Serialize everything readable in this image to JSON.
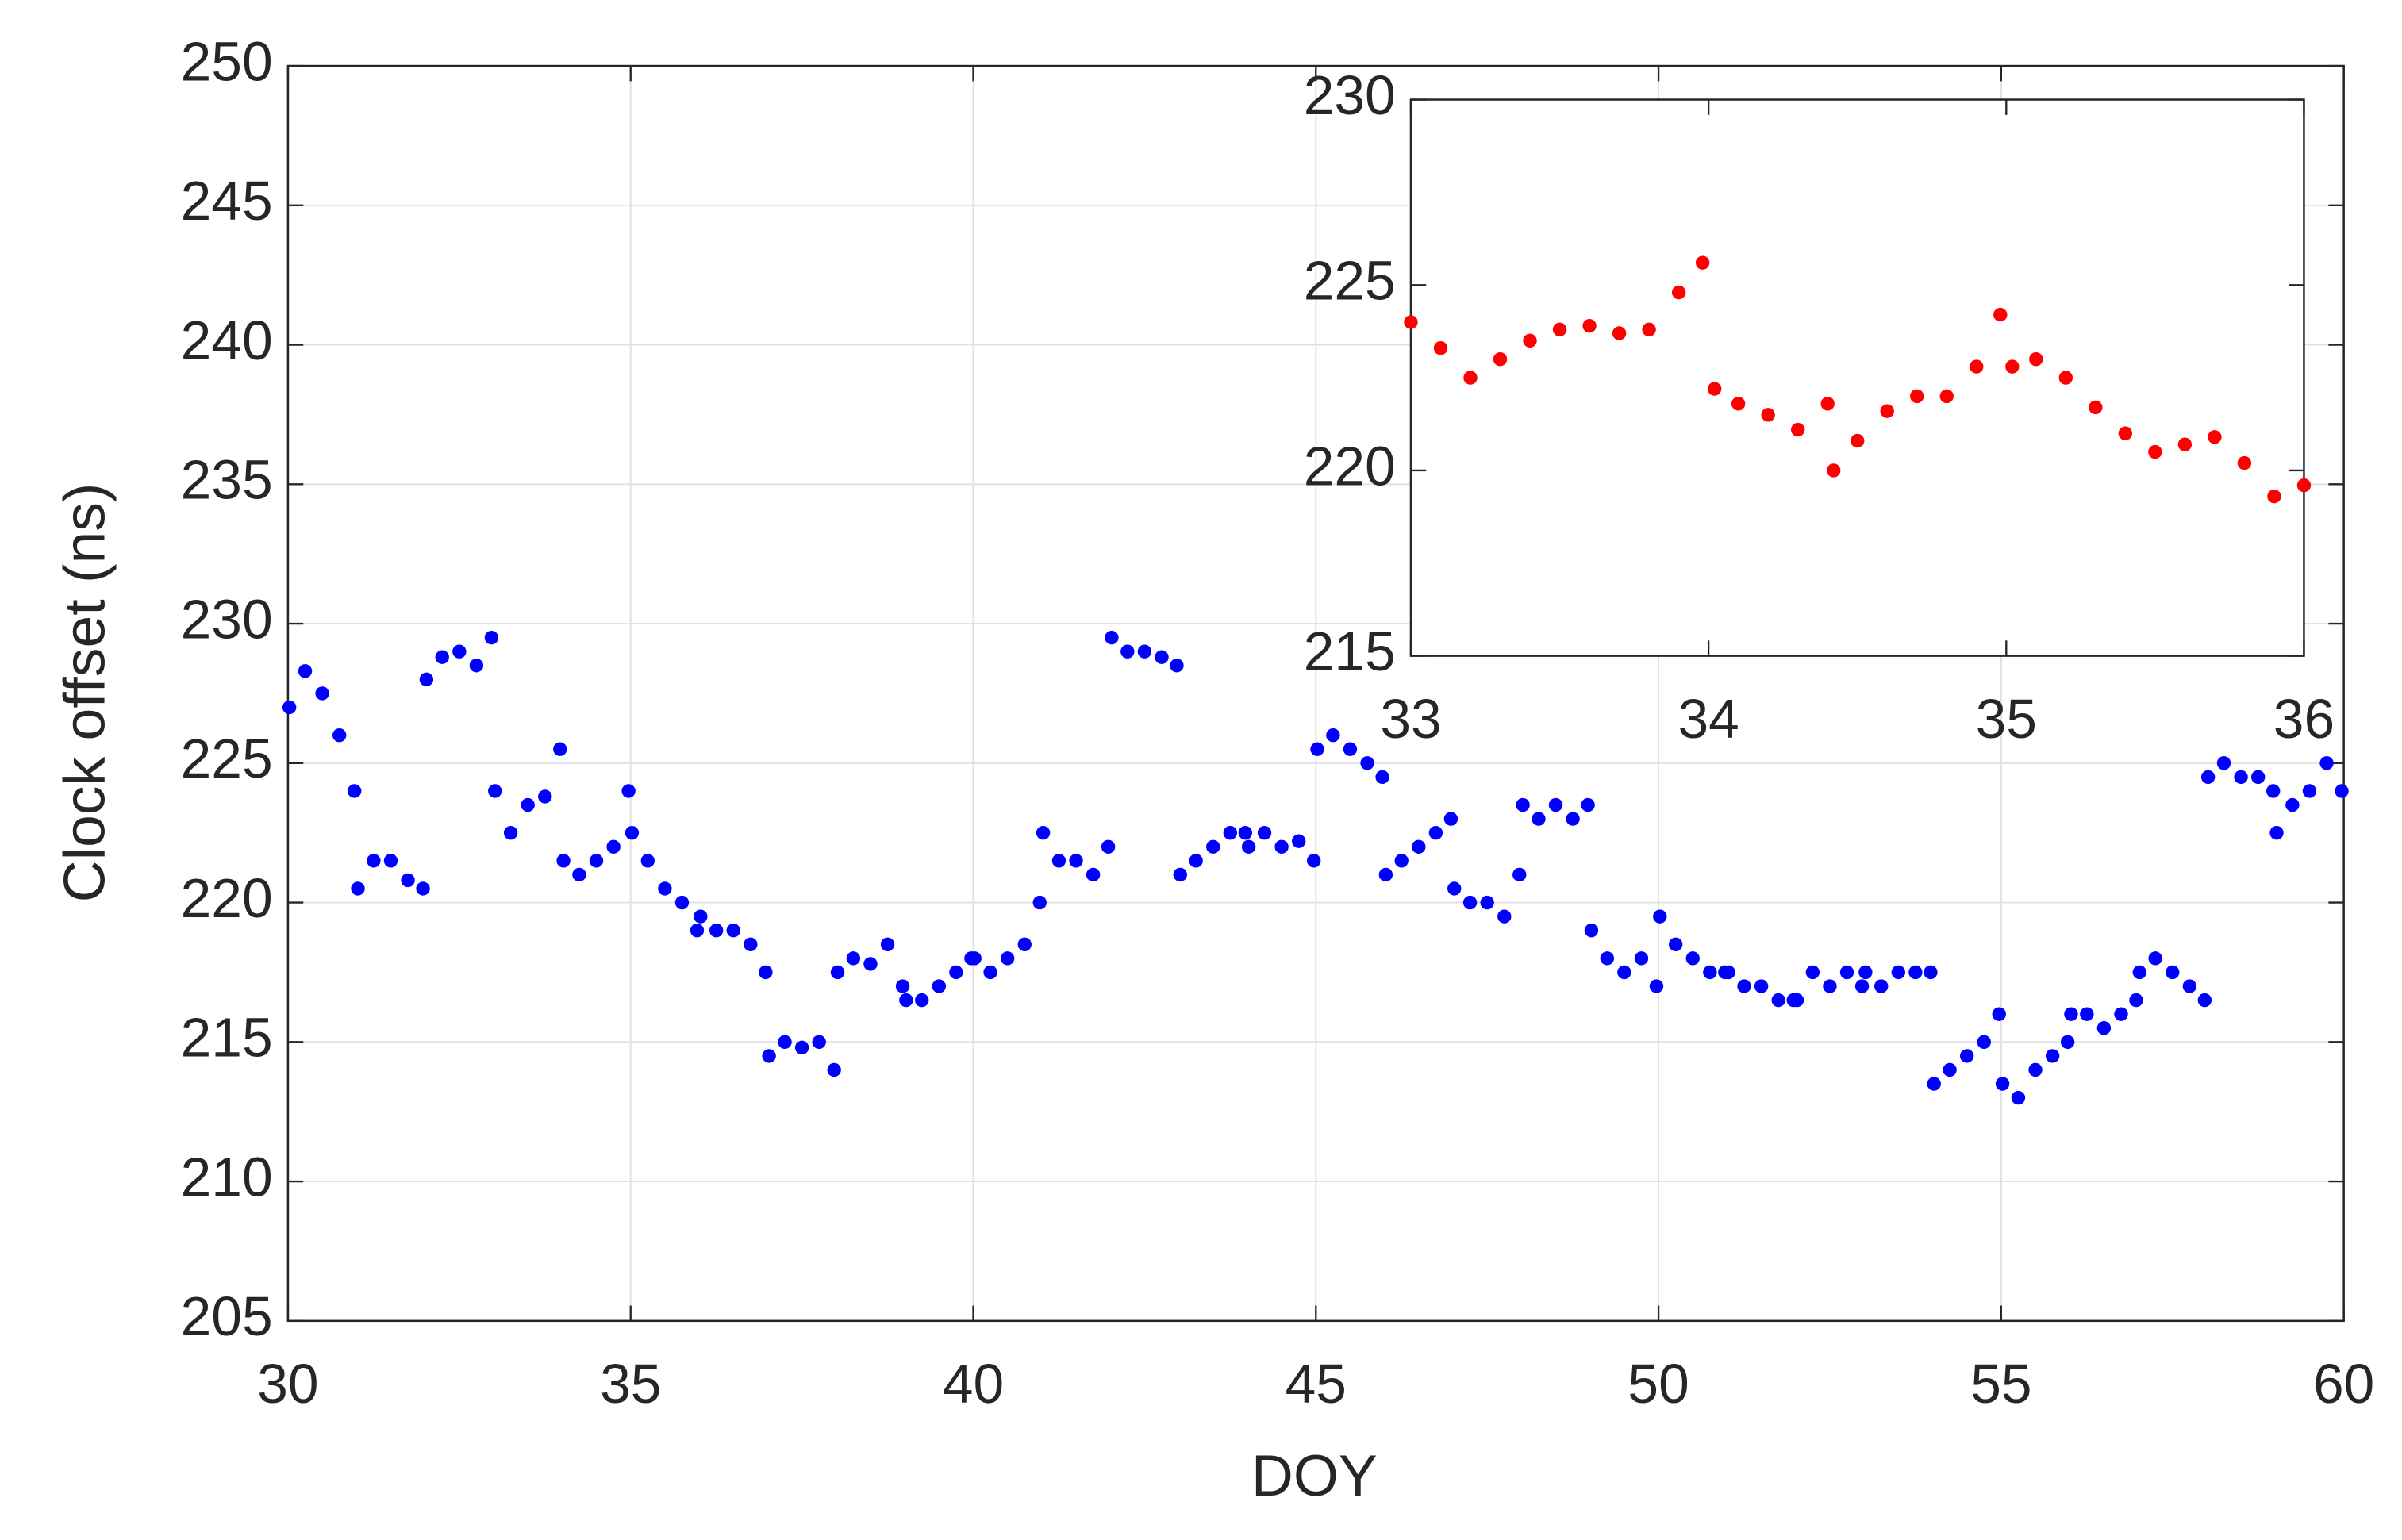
{
  "chart_data": [
    {
      "type": "scatter",
      "x_label": "DOY",
      "y_label": "Clock offset (ns)",
      "color": "#0000ff",
      "grid": true,
      "xlim": [
        30,
        60
      ],
      "ylim": [
        205,
        250
      ],
      "xticks": [
        30,
        35,
        40,
        45,
        50,
        55,
        60
      ],
      "yticks": [
        205,
        210,
        215,
        220,
        225,
        230,
        235,
        240,
        245,
        250
      ],
      "x": [
        30.02,
        30.25,
        30.5,
        30.75,
        30.97,
        31.02,
        31.25,
        31.5,
        31.75,
        31.97,
        32.02,
        32.25,
        32.5,
        32.75,
        32.97,
        33.02,
        33.25,
        33.5,
        33.75,
        33.97,
        34.02,
        34.25,
        34.5,
        34.75,
        34.97,
        35.02,
        35.25,
        35.5,
        35.75,
        35.97,
        36.02,
        36.25,
        36.5,
        36.75,
        36.97,
        37.02,
        37.25,
        37.5,
        37.75,
        37.97,
        38.02,
        38.25,
        38.5,
        38.75,
        38.97,
        39.02,
        39.25,
        39.5,
        39.75,
        39.97,
        40.02,
        40.25,
        40.5,
        40.75,
        40.97,
        41.02,
        41.25,
        41.5,
        41.75,
        41.97,
        42.02,
        42.25,
        42.5,
        42.75,
        42.97,
        43.02,
        43.25,
        43.5,
        43.75,
        43.97,
        44.02,
        44.25,
        44.5,
        44.75,
        44.97,
        45.02,
        45.25,
        45.5,
        45.75,
        45.97,
        46.02,
        46.25,
        46.5,
        46.75,
        46.97,
        47.02,
        47.25,
        47.5,
        47.75,
        47.97,
        48.02,
        48.25,
        48.5,
        48.75,
        48.97,
        49.02,
        49.25,
        49.5,
        49.75,
        49.97,
        50.02,
        50.25,
        50.5,
        50.75,
        50.97,
        51.02,
        51.25,
        51.5,
        51.75,
        51.97,
        52.02,
        52.25,
        52.5,
        52.75,
        52.97,
        53.02,
        53.25,
        53.5,
        53.75,
        53.97,
        54.02,
        54.25,
        54.5,
        54.75,
        54.97,
        55.02,
        55.25,
        55.5,
        55.75,
        55.97,
        56.02,
        56.25,
        56.5,
        56.75,
        56.97,
        57.02,
        57.25,
        57.5,
        57.75,
        57.97,
        58.02,
        58.25,
        58.5,
        58.75,
        58.97,
        59.02,
        59.25,
        59.5,
        59.75,
        59.97
      ],
      "values": [
        227,
        228.3,
        227.5,
        226,
        224,
        220.5,
        221.5,
        221.5,
        220.8,
        220.5,
        228,
        228.8,
        229,
        228.5,
        229.5,
        224,
        222.5,
        223.5,
        223.8,
        225.5,
        221.5,
        221,
        221.5,
        222,
        224,
        222.5,
        221.5,
        220.5,
        220,
        219,
        219.5,
        219,
        219,
        218.5,
        217.5,
        214.5,
        215,
        214.8,
        215,
        214,
        217.5,
        218,
        217.8,
        218.5,
        217,
        216.5,
        216.5,
        217,
        217.5,
        218,
        218,
        217.5,
        218,
        218.5,
        220,
        222.5,
        221.5,
        221.5,
        221,
        222,
        229.5,
        229,
        229,
        228.8,
        228.5,
        221,
        221.5,
        222,
        222.5,
        222.5,
        222,
        222.5,
        222,
        222.2,
        221.5,
        225.5,
        226,
        225.5,
        225,
        224.5,
        221,
        221.5,
        222,
        222.5,
        223,
        220.5,
        220,
        220,
        219.5,
        221,
        223.5,
        223,
        223.5,
        223,
        223.5,
        219,
        218,
        217.5,
        218,
        217,
        219.5,
        218.5,
        218,
        217.5,
        217.5,
        217.5,
        217,
        217,
        216.5,
        216.5,
        216.5,
        217.5,
        217,
        217.5,
        217,
        217.5,
        217,
        217.5,
        217.5,
        217.5,
        213.5,
        214,
        214.5,
        215,
        216,
        213.5,
        213,
        214,
        214.5,
        215,
        216,
        216,
        215.5,
        216,
        216.5,
        217.5,
        218,
        217.5,
        217,
        216.5,
        224.5,
        225,
        224.5,
        224.5,
        224,
        222.5,
        223.5,
        224,
        225,
        224
      ]
    },
    {
      "type": "scatter",
      "color": "#ff0000",
      "grid": false,
      "xlim": [
        33,
        36
      ],
      "ylim": [
        215,
        230
      ],
      "xticks": [
        33,
        34,
        35,
        36
      ],
      "yticks": [
        215,
        220,
        225,
        230
      ],
      "x": [
        33.0,
        33.1,
        33.2,
        33.3,
        33.4,
        33.5,
        33.6,
        33.7,
        33.8,
        33.9,
        33.98,
        34.02,
        34.1,
        34.2,
        34.3,
        34.4,
        34.42,
        34.5,
        34.6,
        34.7,
        34.8,
        34.9,
        34.98,
        35.02,
        35.1,
        35.2,
        35.3,
        35.4,
        35.5,
        35.6,
        35.7,
        35.8,
        35.9,
        36.0
      ],
      "values": [
        224,
        223.3,
        222.5,
        223,
        223.5,
        223.8,
        223.9,
        223.7,
        223.8,
        224.8,
        225.6,
        222.2,
        221.8,
        221.5,
        221.1,
        221.8,
        220,
        220.8,
        221.6,
        222,
        222,
        222.8,
        224.2,
        222.8,
        223,
        222.5,
        221.7,
        221,
        220.5,
        220.7,
        220.9,
        220.2,
        219.3,
        219.6
      ]
    }
  ]
}
